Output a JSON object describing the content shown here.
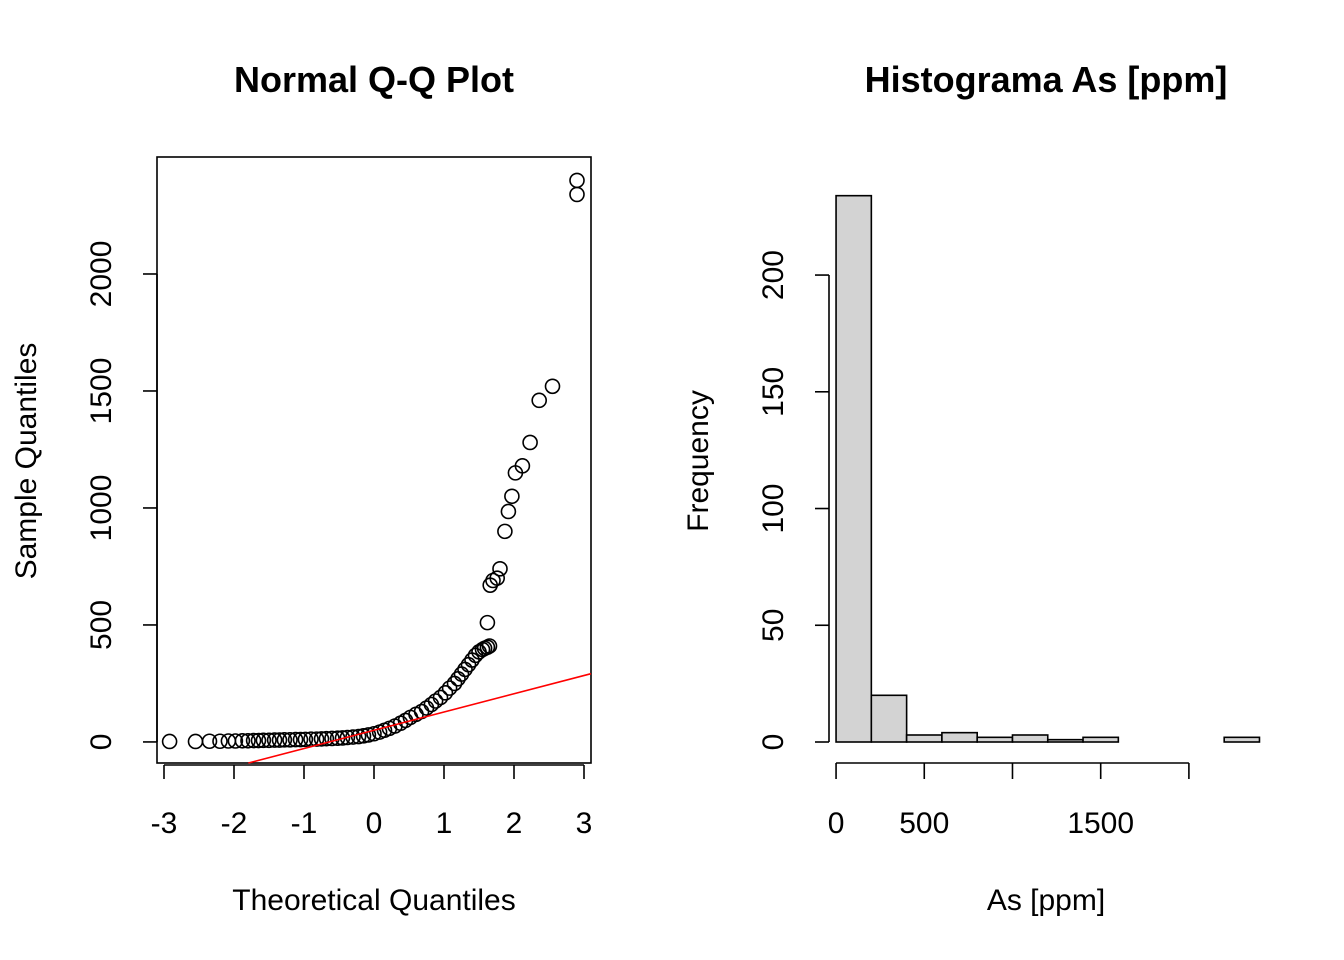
{
  "chart_data": [
    {
      "type": "scatter",
      "title": "Normal Q-Q Plot",
      "xlabel": "Theoretical Quantiles",
      "ylabel": "Sample Quantiles",
      "xlim": [
        -3.1,
        3.1
      ],
      "ylim": [
        -90,
        2500
      ],
      "x_ticks": [
        -3,
        -2,
        -1,
        0,
        1,
        2,
        3
      ],
      "y_ticks": [
        0,
        500,
        1000,
        1500,
        2000
      ],
      "reference_line": {
        "intercept": 50,
        "slope": 78,
        "color": "#ff0000"
      },
      "points": {
        "x": [
          -2.92,
          -2.55,
          -2.35,
          -2.2,
          -2.08,
          -1.98,
          -1.88,
          -1.8,
          -1.72,
          -1.65,
          -1.58,
          -1.5,
          -1.42,
          -1.35,
          -1.28,
          -1.2,
          -1.12,
          -1.05,
          -0.98,
          -0.9,
          -0.82,
          -0.75,
          -0.68,
          -0.6,
          -0.52,
          -0.45,
          -0.38,
          -0.3,
          -0.22,
          -0.15,
          -0.08,
          0.0,
          0.08,
          0.15,
          0.22,
          0.3,
          0.38,
          0.45,
          0.52,
          0.6,
          0.68,
          0.75,
          0.82,
          0.88,
          0.95,
          1.02,
          1.08,
          1.15,
          1.2,
          1.25,
          1.3,
          1.35,
          1.4,
          1.45,
          1.5,
          1.55,
          1.58,
          1.62,
          1.65,
          1.62,
          1.66,
          1.7,
          1.76,
          1.8,
          1.87,
          1.92,
          1.97,
          2.02,
          2.12,
          2.23,
          2.36,
          2.55,
          2.9
        ],
        "y": [
          2,
          2,
          3,
          3,
          4,
          4,
          5,
          5,
          6,
          6,
          7,
          7,
          8,
          8,
          9,
          9,
          10,
          10,
          11,
          12,
          12,
          13,
          14,
          15,
          16,
          17,
          19,
          21,
          23,
          26,
          30,
          35,
          42,
          50,
          58,
          68,
          80,
          92,
          105,
          118,
          130,
          145,
          160,
          175,
          190,
          210,
          230,
          250,
          270,
          290,
          310,
          330,
          350,
          370,
          385,
          395,
          400,
          405,
          410,
          510,
          670,
          690,
          700,
          740,
          900,
          985,
          1050,
          1150,
          1180,
          1280,
          1460,
          1520,
          2340
        ],
        "y_extra_top": 2400
      }
    },
    {
      "type": "bar",
      "title": "Histograma As [ppm]",
      "xlabel": "As [ppm]",
      "ylabel": "Frequency",
      "xlim": [
        -40,
        2420
      ],
      "ylim": [
        0,
        242
      ],
      "x_ticks": [
        0,
        500,
        1000,
        1500,
        2000
      ],
      "x_tick_labels": [
        "0",
        "500",
        "",
        "1500",
        ""
      ],
      "y_ticks": [
        0,
        50,
        100,
        150,
        200
      ],
      "bin_width": 200,
      "bin_starts": [
        0,
        200,
        400,
        600,
        800,
        1000,
        1200,
        1400,
        1600,
        1800,
        2000,
        2200
      ],
      "values": [
        234,
        20,
        3,
        4,
        2,
        3,
        1,
        2,
        0,
        0,
        0,
        2
      ]
    }
  ]
}
